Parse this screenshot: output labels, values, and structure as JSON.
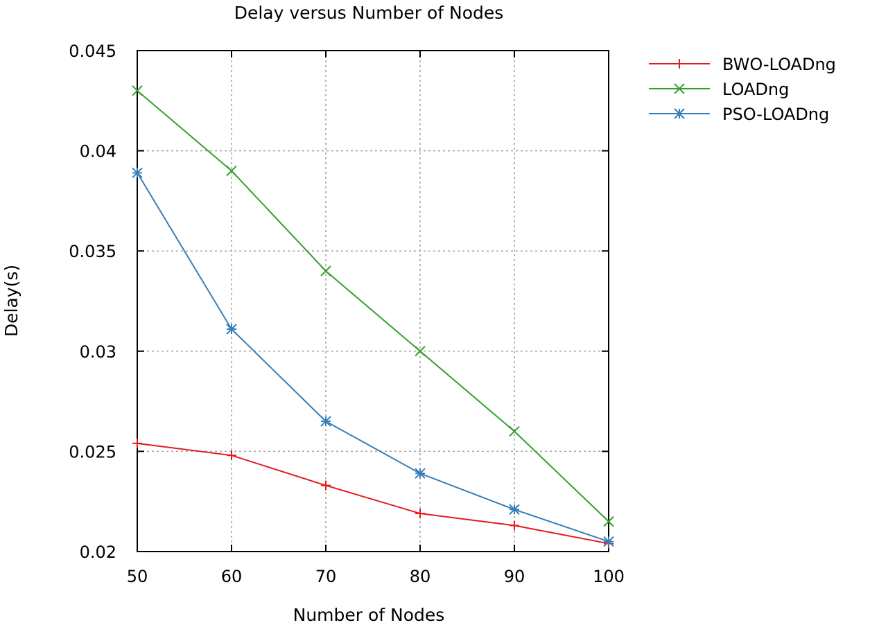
{
  "chart_data": {
    "type": "line",
    "title": "Delay versus Number of Nodes",
    "xlabel": "Number of Nodes",
    "ylabel": "Delay(s)",
    "x": [
      50,
      60,
      70,
      80,
      90,
      100
    ],
    "x_ticks": [
      "50",
      "60",
      "70",
      "80",
      "90",
      "100"
    ],
    "y_ticks": [
      0.02,
      0.025,
      0.03,
      0.035,
      0.04,
      0.045
    ],
    "y_tick_labels": [
      "0.02",
      "0.025",
      "0.03",
      "0.035",
      "0.04",
      "0.045"
    ],
    "xlim": [
      50,
      100
    ],
    "ylim": [
      0.02,
      0.045
    ],
    "grid": true,
    "legend_position": "outside-top-right",
    "series": [
      {
        "name": "BWO-LOADng",
        "color": "#e41a1c",
        "marker": "plus",
        "values": [
          0.0254,
          0.0248,
          0.0233,
          0.0219,
          0.0213,
          0.0204
        ]
      },
      {
        "name": "LOADng",
        "color": "#33a02c",
        "marker": "cross",
        "values": [
          0.043,
          0.039,
          0.034,
          0.03,
          0.026,
          0.0215
        ]
      },
      {
        "name": "PSO-LOADng",
        "color": "#377eb8",
        "marker": "star",
        "values": [
          0.0389,
          0.0311,
          0.0265,
          0.0239,
          0.0221,
          0.0205
        ]
      }
    ]
  }
}
